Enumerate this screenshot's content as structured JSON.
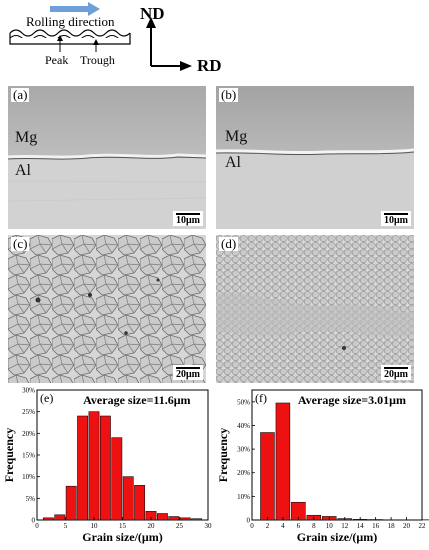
{
  "schematic": {
    "rolling_direction": "Rolling direction",
    "peak": "Peak",
    "trough": "Trough",
    "axis_vertical": "ND",
    "axis_horizontal": "RD"
  },
  "panels": {
    "a": {
      "label": "(a)",
      "top_layer": "Mg",
      "bottom_layer": "Al",
      "scale": "10μm"
    },
    "b": {
      "label": "(b)",
      "top_layer": "Mg",
      "bottom_layer": "Al",
      "scale": "10μm"
    },
    "c": {
      "label": "(c)",
      "scale": "20μm"
    },
    "d": {
      "label": "(d)",
      "scale": "20μm"
    }
  },
  "chart_data": [
    {
      "panel": "(e)",
      "type": "bar",
      "annotation": "Average size=11.6μm",
      "xlabel": "Grain size/(μm)",
      "ylabel": "Frequency",
      "x": [
        2,
        4,
        6,
        8,
        10,
        12,
        14,
        16,
        18,
        20,
        22,
        24,
        26,
        28
      ],
      "values": [
        0.5,
        1.2,
        7.8,
        24.0,
        25.0,
        24.0,
        19.0,
        10.0,
        8.0,
        2.0,
        1.5,
        0.8,
        0.5,
        0.3
      ],
      "xticks": [
        "0",
        "5",
        "10",
        "15",
        "20",
        "25",
        "30"
      ],
      "yticks": [
        "0",
        "5%",
        "10%",
        "15%",
        "20%",
        "25%",
        "30%"
      ],
      "xlim": [
        0,
        30
      ],
      "ylim": [
        0,
        30
      ],
      "color": "#ee1111"
    },
    {
      "panel": "(f)",
      "type": "bar",
      "annotation": "Average size=3.01μm",
      "xlabel": "Grain size/(μm)",
      "ylabel": "Frequency",
      "x": [
        2,
        4,
        6,
        8,
        10,
        12,
        14,
        16,
        18,
        20,
        22
      ],
      "values": [
        37.0,
        49.5,
        7.5,
        2.0,
        1.5,
        0.6,
        0.3,
        0.2,
        0.1,
        0.1,
        0.1
      ],
      "xticks": [
        "0",
        "2",
        "4",
        "6",
        "8",
        "10",
        "12",
        "14",
        "16",
        "18",
        "20",
        "22"
      ],
      "yticks": [
        "0",
        "10%",
        "20%",
        "30%",
        "40%",
        "50%"
      ],
      "xlim": [
        0,
        22
      ],
      "ylim": [
        0,
        55
      ],
      "color": "#ee1111"
    }
  ]
}
